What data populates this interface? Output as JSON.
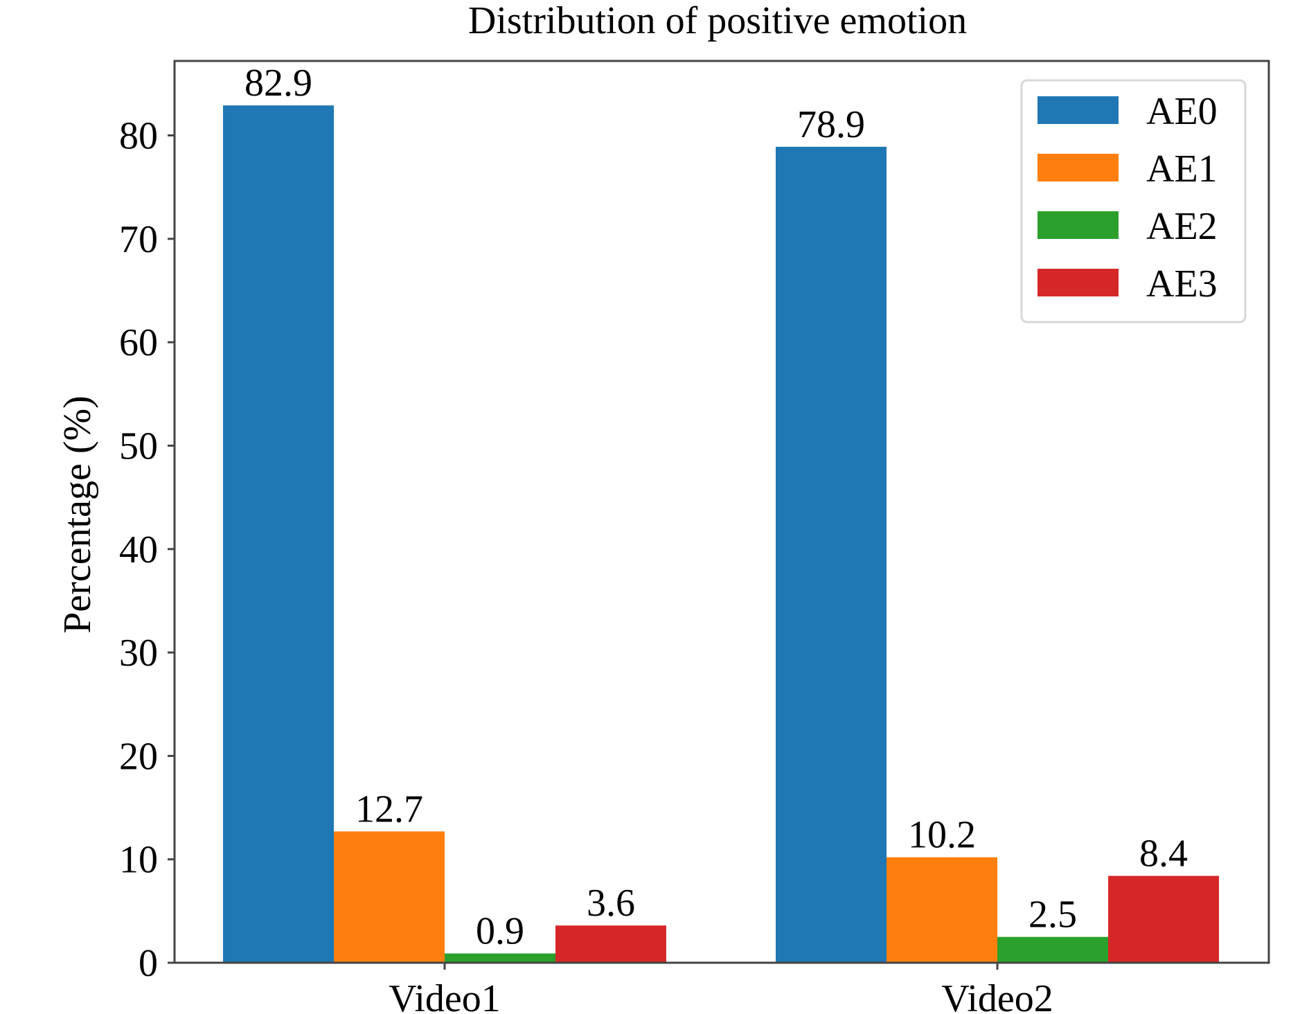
{
  "chart_data": {
    "type": "bar",
    "title": "Distribution of positive emotion",
    "xlabel": "",
    "ylabel": "Percentage (%)",
    "categories": [
      "Video1",
      "Video2"
    ],
    "series": [
      {
        "name": "AE0",
        "color": "#1f77b4",
        "values": [
          82.9,
          78.9
        ]
      },
      {
        "name": "AE1",
        "color": "#ff7f0e",
        "values": [
          12.7,
          10.2
        ]
      },
      {
        "name": "AE2",
        "color": "#2ca02c",
        "values": [
          0.9,
          2.5
        ]
      },
      {
        "name": "AE3",
        "color": "#d62728",
        "values": [
          3.6,
          8.4
        ]
      }
    ],
    "data_labels": [
      [
        "82.9",
        "78.9"
      ],
      [
        "12.7",
        "10.2"
      ],
      [
        "0.9",
        "2.5"
      ],
      [
        "3.6",
        "8.4"
      ]
    ],
    "yticks": [
      0,
      10,
      20,
      30,
      40,
      50,
      60,
      70,
      80
    ],
    "ytick_labels": [
      "0",
      "10",
      "20",
      "30",
      "40",
      "50",
      "60",
      "70",
      "80"
    ],
    "ylim": [
      0,
      87.2
    ],
    "grid": false,
    "legend": {
      "position": "top-right",
      "entries": [
        "AE0",
        "AE1",
        "AE2",
        "AE3"
      ]
    }
  }
}
